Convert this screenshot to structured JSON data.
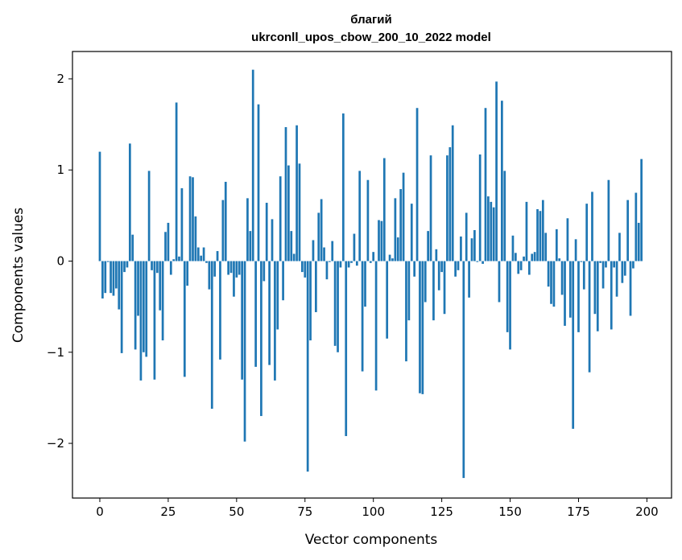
{
  "chart_data": {
    "type": "bar",
    "title": [
      "благий",
      "ukrconll_upos_cbow_200_10_2022 model"
    ],
    "xlabel": "Vector components",
    "ylabel": "Components values",
    "xlim": [
      -10,
      209
    ],
    "ylim": [
      -2.6,
      2.3
    ],
    "xticks": [
      0,
      25,
      50,
      75,
      100,
      125,
      150,
      175,
      200
    ],
    "xtick_labels": [
      "0",
      "25",
      "50",
      "75",
      "100",
      "125",
      "150",
      "175",
      "200"
    ],
    "yticks": [
      -2,
      -1,
      0,
      1,
      2
    ],
    "ytick_labels": [
      "−2",
      "−1",
      "0",
      "1",
      "2"
    ],
    "grid": false,
    "legend": "none",
    "color": "#1f77b4",
    "x_start": 0,
    "values": [
      1.2,
      -0.41,
      -0.35,
      -0.01,
      -0.35,
      -0.38,
      -0.3,
      -0.53,
      -1.01,
      -0.12,
      -0.07,
      1.29,
      0.29,
      -0.97,
      -0.6,
      -1.31,
      -1.0,
      -1.05,
      0.99,
      -0.1,
      -1.3,
      -0.13,
      -0.54,
      -0.87,
      0.32,
      0.42,
      -0.15,
      0.02,
      1.74,
      0.05,
      0.8,
      -1.27,
      -0.27,
      0.93,
      0.92,
      0.49,
      0.15,
      0.06,
      0.15,
      -0.02,
      -0.31,
      -1.62,
      -0.17,
      0.11,
      -1.08,
      0.67,
      0.87,
      -0.15,
      -0.13,
      -0.39,
      -0.18,
      -0.15,
      -1.3,
      -1.98,
      0.69,
      0.33,
      2.1,
      -1.16,
      1.72,
      -1.7,
      -0.22,
      0.64,
      -1.14,
      0.46,
      -1.31,
      -0.75,
      0.93,
      -0.43,
      1.47,
      1.05,
      0.33,
      0.08,
      1.49,
      1.07,
      -0.12,
      -0.18,
      -2.31,
      -0.87,
      0.23,
      -0.56,
      0.53,
      0.68,
      0.15,
      -0.2,
      -0.01,
      0.22,
      -0.93,
      -1.0,
      -0.07,
      1.62,
      -1.92,
      -0.07,
      -0.02,
      0.3,
      -0.05,
      0.99,
      -1.21,
      -0.5,
      0.89,
      -0.02,
      0.1,
      -1.42,
      0.45,
      0.44,
      1.13,
      -0.85,
      0.07,
      0.03,
      0.69,
      0.26,
      0.79,
      0.97,
      -1.1,
      -0.65,
      0.63,
      -0.17,
      1.68,
      -1.45,
      -1.46,
      -0.45,
      0.33,
      1.16,
      -0.65,
      0.13,
      -0.32,
      -0.12,
      -0.58,
      1.16,
      1.25,
      1.49,
      -0.17,
      -0.1,
      0.27,
      -2.38,
      0.53,
      -0.4,
      0.25,
      0.34,
      -0.01,
      1.17,
      -0.03,
      1.68,
      0.71,
      0.65,
      0.59,
      1.97,
      -0.45,
      1.76,
      0.99,
      -0.78,
      -0.97,
      0.28,
      0.09,
      -0.14,
      -0.1,
      0.05,
      0.65,
      -0.15,
      0.08,
      0.1,
      0.57,
      0.55,
      0.67,
      0.31,
      -0.28,
      -0.47,
      -0.5,
      0.35,
      0.03,
      -0.37,
      -0.71,
      0.47,
      -0.62,
      -1.84,
      0.24,
      -0.78,
      -0.01,
      -0.31,
      0.63,
      -1.22,
      0.76,
      -0.58,
      -0.77,
      -0.02,
      -0.3,
      -0.07,
      0.89,
      -0.75,
      -0.07,
      -0.39,
      0.31,
      -0.24,
      -0.16,
      0.67,
      -0.6,
      -0.08,
      0.75,
      0.42,
      1.12
    ]
  }
}
